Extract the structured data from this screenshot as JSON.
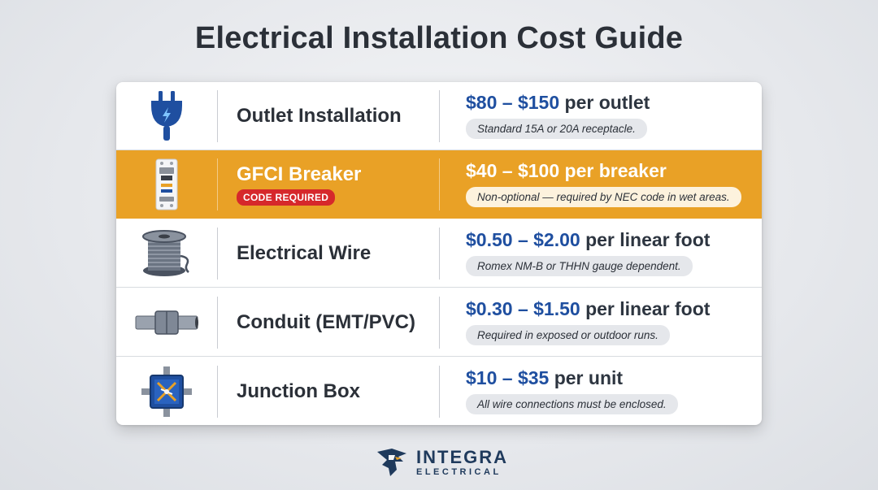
{
  "title": "Electrical Installation Cost Guide",
  "rows": [
    {
      "icon": "plug-icon",
      "service": "Outlet Installation",
      "badge": "",
      "price_range": "$80 – $150",
      "price_unit": "per outlet",
      "note": "Standard 15A or 20A receptacle.",
      "highlighted": false
    },
    {
      "icon": "breaker-icon",
      "service": "GFCI Breaker",
      "badge": "CODE REQUIRED",
      "price_range": "$40 – $100",
      "price_unit": "per breaker",
      "note": "Non-optional — required by NEC code in wet areas.",
      "highlighted": true
    },
    {
      "icon": "wire-spool-icon",
      "service": "Electrical Wire",
      "badge": "",
      "price_range": "$0.50 – $2.00",
      "price_unit": "per linear foot",
      "note": "Romex NM-B or THHN gauge dependent.",
      "highlighted": false
    },
    {
      "icon": "conduit-icon",
      "service": "Conduit (EMT/PVC)",
      "badge": "",
      "price_range": "$0.30 – $1.50",
      "price_unit": "per linear foot",
      "note": "Required in exposed or outdoor runs.",
      "highlighted": false
    },
    {
      "icon": "junction-box-icon",
      "service": "Junction Box",
      "badge": "",
      "price_range": "$10 – $35",
      "price_unit": "per unit",
      "note": "All wire connections must be enclosed.",
      "highlighted": false
    }
  ],
  "brand": {
    "name": "INTEGRA",
    "sub": "ELECTRICAL",
    "icon": "eagle-logo-icon"
  },
  "colors": {
    "accent": "#e9a126",
    "price_blue": "#1f4fa0",
    "badge_red": "#d6282b",
    "title": "#2b3038"
  }
}
